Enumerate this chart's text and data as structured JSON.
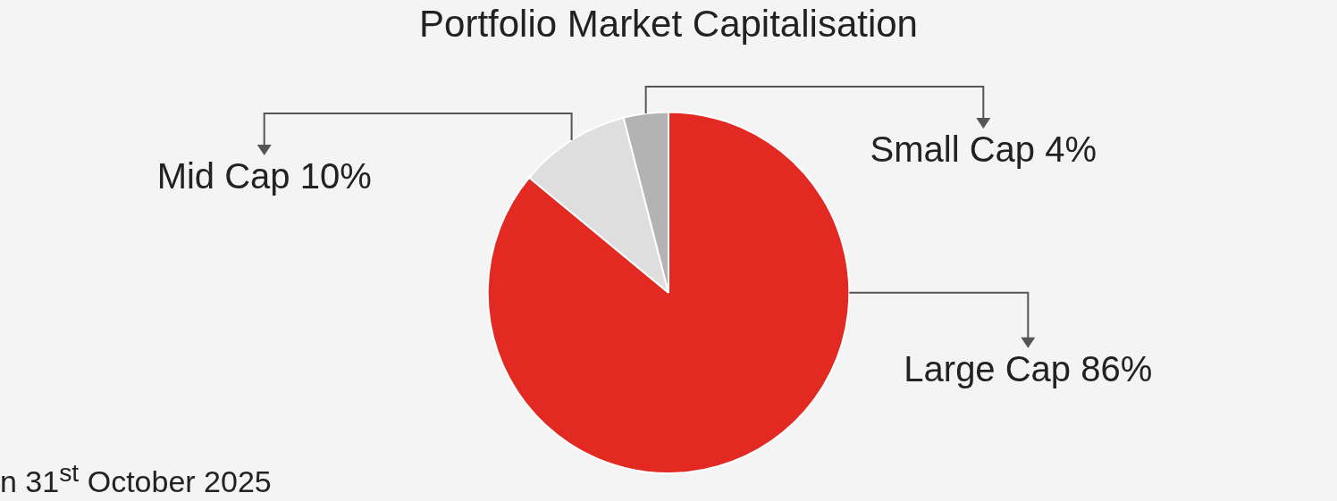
{
  "chart_data": {
    "type": "pie",
    "title": "Portfolio Market Capitalisation",
    "categories": [
      "Large Cap",
      "Mid Cap",
      "Small Cap"
    ],
    "values": [
      86,
      10,
      4
    ],
    "value_labels": [
      "86%",
      "10%",
      "4%"
    ],
    "colors": [
      "#e32a22",
      "#dedede",
      "#b3b3b3"
    ],
    "legend": false,
    "annotations": [
      "n 31$^{st}$ October 2025"
    ]
  }
}
